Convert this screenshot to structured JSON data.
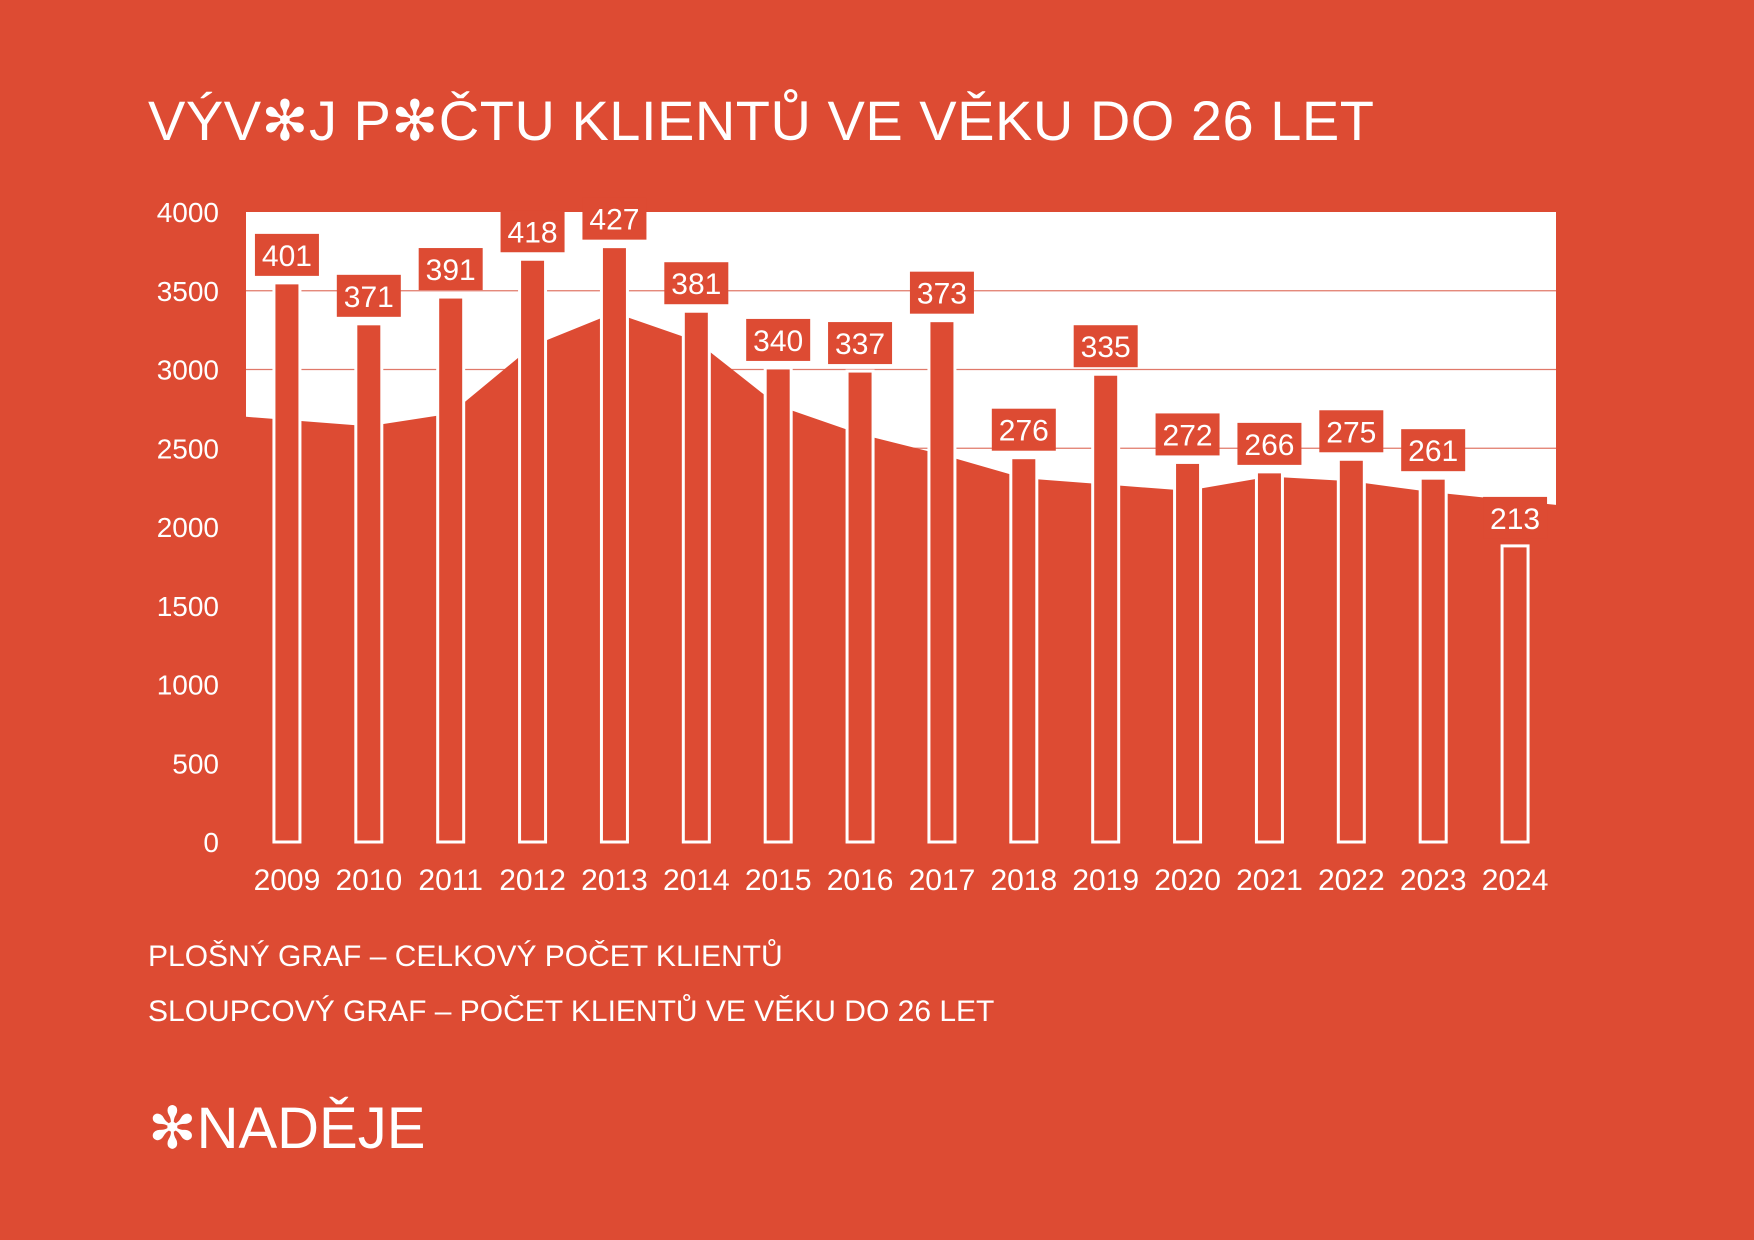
{
  "title": "VÝV✻J P✻ČTU KLIENTŮ VE VĚKU DO 26 LET",
  "legend": {
    "area_label": "PLOŠNÝ GRAF – CELKOVÝ POČET KLIENTŮ",
    "bar_label": "SLOUPCOVÝ GRAF – POČET KLIENTŮ VE VĚKU DO 26 LET"
  },
  "brand": "✻NADĚJE",
  "colors": {
    "background": "#dd4b33",
    "plot_background": "#ffffff",
    "gridline": "#e0796a"
  },
  "chart_data": {
    "type": "bar",
    "categories": [
      "2009",
      "2010",
      "2011",
      "2012",
      "2013",
      "2014",
      "2015",
      "2016",
      "2017",
      "2018",
      "2019",
      "2020",
      "2021",
      "2022",
      "2023",
      "2024"
    ],
    "ylim": [
      0,
      4000
    ],
    "yticks": [
      0,
      500,
      1000,
      1500,
      2000,
      2500,
      3000,
      3500,
      4000
    ],
    "grid": true,
    "series": [
      {
        "name": "CELKOVÝ POČET KLIENTŮ",
        "type": "area",
        "values": [
          2700,
          2640,
          2720,
          3150,
          3360,
          3180,
          2770,
          2590,
          2460,
          2310,
          2270,
          2230,
          2320,
          2290,
          2220,
          2140
        ]
      },
      {
        "name": "POČET KLIENTŮ VE VĚKU DO 26 LET",
        "type": "bar",
        "values": [
          3550,
          3290,
          3460,
          3700,
          3780,
          3370,
          3010,
          2990,
          3310,
          2440,
          2970,
          2410,
          2350,
          2430,
          2310,
          1880
        ],
        "labels": [
          "401",
          "371",
          "391",
          "418",
          "427",
          "381",
          "340",
          "337",
          "373",
          "276",
          "335",
          "272",
          "266",
          "275",
          "261",
          "213"
        ]
      }
    ]
  }
}
